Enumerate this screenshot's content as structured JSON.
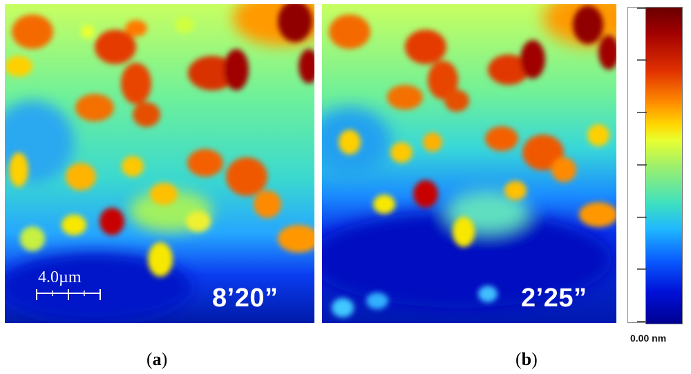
{
  "panels": [
    {
      "id": "a",
      "time": "8’20”",
      "caption_letter": "a",
      "scale_text": "4.0µm"
    },
    {
      "id": "b",
      "time": "2’25”",
      "caption_letter": "b"
    }
  ],
  "colorbar": {
    "min_label": "0.00 nm",
    "colors": [
      "#6a0000",
      "#e03000",
      "#ffd600",
      "#9ff06a",
      "#3ee0c0",
      "#20b8ff",
      "#0010d8",
      "#000090"
    ]
  }
}
